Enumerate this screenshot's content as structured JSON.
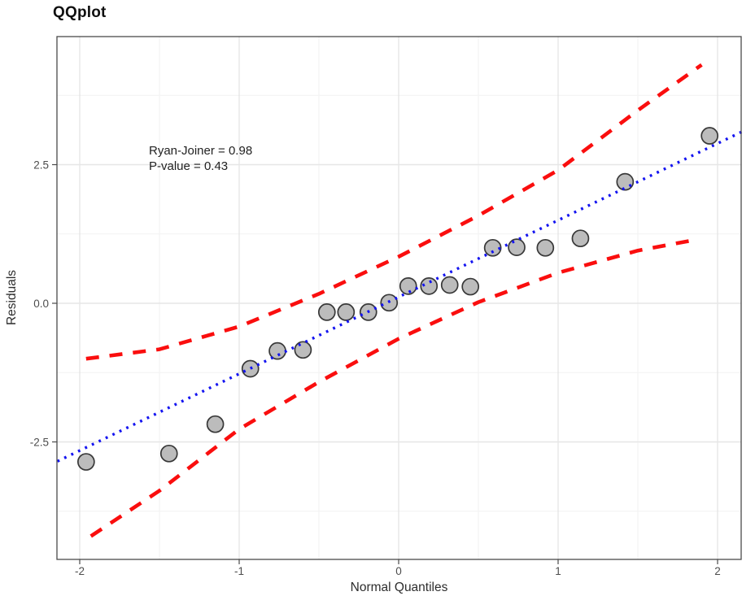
{
  "chart_data": {
    "type": "scatter",
    "title": "QQplot",
    "xlabel": "Normal Quantiles",
    "ylabel": "Residuals",
    "xlim": [
      -2.14,
      2.15
    ],
    "ylim": [
      -4.65,
      4.8
    ],
    "grid": true,
    "x_major_ticks": [
      -2,
      -1,
      0,
      1,
      2
    ],
    "x_tick_labels": [
      "-2",
      "-1",
      "0",
      "1",
      "2"
    ],
    "x_minor_ticks": [
      -1.5,
      -0.5,
      0.5,
      1.5
    ],
    "y_major_ticks": [
      -2.5,
      0.0,
      2.5
    ],
    "y_tick_labels": [
      "-2.5",
      "0.0",
      "2.5"
    ],
    "y_minor_ticks": [
      -3.75,
      -1.25,
      1.25,
      3.75
    ],
    "annotation": {
      "line1": "Ryan-Joiner = 0.98",
      "line2": "P-value = 0.43"
    },
    "points": [
      [
        -1.96,
        -2.86
      ],
      [
        -1.44,
        -2.71
      ],
      [
        -1.15,
        -2.18
      ],
      [
        -0.93,
        -1.18
      ],
      [
        -0.76,
        -0.86
      ],
      [
        -0.6,
        -0.84
      ],
      [
        -0.45,
        -0.16
      ],
      [
        -0.33,
        -0.16
      ],
      [
        -0.19,
        -0.16
      ],
      [
        -0.06,
        0.01
      ],
      [
        0.06,
        0.31
      ],
      [
        0.19,
        0.31
      ],
      [
        0.32,
        0.33
      ],
      [
        0.45,
        0.3
      ],
      [
        0.59,
        1.0
      ],
      [
        0.74,
        1.01
      ],
      [
        0.92,
        1.0
      ],
      [
        1.14,
        1.17
      ],
      [
        1.42,
        2.19
      ],
      [
        1.95,
        3.02
      ]
    ],
    "qq_line": {
      "x1": -2.14,
      "y1": -2.85,
      "x2": 2.15,
      "y2": 3.09
    },
    "upper_band": [
      [
        -1.96,
        -1.0
      ],
      [
        -1.5,
        -0.83
      ],
      [
        -1.0,
        -0.42
      ],
      [
        -0.5,
        0.17
      ],
      [
        0.0,
        0.84
      ],
      [
        0.5,
        1.58
      ],
      [
        1.0,
        2.4
      ],
      [
        1.5,
        3.48
      ],
      [
        1.9,
        4.3
      ]
    ],
    "lower_band": [
      [
        -1.93,
        -4.2
      ],
      [
        -1.5,
        -3.38
      ],
      [
        -1.0,
        -2.27
      ],
      [
        -0.5,
        -1.42
      ],
      [
        0.0,
        -0.64
      ],
      [
        0.5,
        0.02
      ],
      [
        1.0,
        0.55
      ],
      [
        1.5,
        0.95
      ],
      [
        1.87,
        1.15
      ]
    ],
    "colors": {
      "qq_line": "#1414F0",
      "band": "#FA0E0E",
      "point_fill": "#BCBCBC",
      "point_stroke": "#383838",
      "grid_major": "#E6E6E6",
      "grid_minor": "#F2F2F2",
      "axis_text": "#4D4D4D",
      "border": "#4A4A4A",
      "panel_bg": "#FFFFFF"
    }
  }
}
